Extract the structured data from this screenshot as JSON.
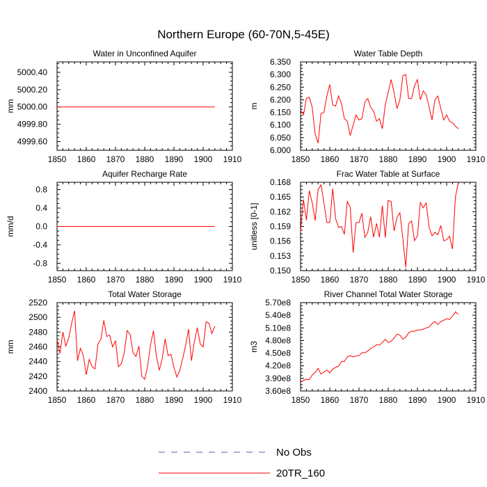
{
  "figure": {
    "title": "Northern Europe (60-70N,5-45E)",
    "colors": {
      "model": "#ff0000",
      "obs": "#5a5aa0"
    }
  },
  "legend": {
    "items": [
      {
        "label": "No Obs",
        "style": "dashed",
        "color": "#5a5aa0"
      },
      {
        "label": "20TR_160",
        "style": "solid",
        "color": "#ff0000"
      }
    ]
  },
  "chart_data": [
    {
      "type": "line",
      "title": "Water in Unconfined Aquifer",
      "xlabel": "",
      "ylabel": "mm",
      "xlim": [
        1850,
        1910
      ],
      "ylim": [
        4999.5,
        5000.52
      ],
      "xticks": [
        1850,
        1860,
        1870,
        1880,
        1890,
        1900,
        1910
      ],
      "yticks": [
        4999.6,
        4999.8,
        5000.0,
        5000.2,
        5000.4
      ],
      "ytick_labels": [
        "4999.60",
        "4999.80",
        "5000.00",
        "5000.20",
        "5000.40"
      ],
      "x": [
        1850,
        1851,
        1852,
        1853,
        1854,
        1855,
        1856,
        1857,
        1858,
        1859,
        1860,
        1861,
        1862,
        1863,
        1864,
        1865,
        1866,
        1867,
        1868,
        1869,
        1870,
        1871,
        1872,
        1873,
        1874,
        1875,
        1876,
        1877,
        1878,
        1879,
        1880,
        1881,
        1882,
        1883,
        1884,
        1885,
        1886,
        1887,
        1888,
        1889,
        1890,
        1891,
        1892,
        1893,
        1894,
        1895,
        1896,
        1897,
        1898,
        1899,
        1900,
        1901,
        1902,
        1903,
        1904
      ],
      "series": [
        {
          "name": "20TR_160",
          "values": [
            5000,
            5000,
            5000,
            5000,
            5000,
            5000,
            5000,
            5000,
            5000,
            5000,
            5000,
            5000,
            5000,
            5000,
            5000,
            5000,
            5000,
            5000,
            5000,
            5000,
            5000,
            5000,
            5000,
            5000,
            5000,
            5000,
            5000,
            5000,
            5000,
            5000,
            5000,
            5000,
            5000,
            5000,
            5000,
            5000,
            5000,
            5000,
            5000,
            5000,
            5000,
            5000,
            5000,
            5000,
            5000,
            5000,
            5000,
            5000,
            5000,
            5000,
            5000,
            5000,
            5000,
            5000,
            5000
          ]
        }
      ]
    },
    {
      "type": "line",
      "title": "Water Table Depth",
      "xlabel": "",
      "ylabel": "m",
      "xlim": [
        1850,
        1910
      ],
      "ylim": [
        6.0,
        6.35
      ],
      "xticks": [
        1850,
        1860,
        1870,
        1880,
        1890,
        1900,
        1910
      ],
      "yticks": [
        6.0,
        6.05,
        6.1,
        6.15,
        6.2,
        6.25,
        6.3,
        6.35
      ],
      "ytick_labels": [
        "6.000",
        "6.050",
        "6.100",
        "6.150",
        "6.200",
        "6.250",
        "6.300",
        "6.350"
      ],
      "x": [
        1850,
        1851,
        1852,
        1853,
        1854,
        1855,
        1856,
        1857,
        1858,
        1859,
        1860,
        1861,
        1862,
        1863,
        1864,
        1865,
        1866,
        1867,
        1868,
        1869,
        1870,
        1871,
        1872,
        1873,
        1874,
        1875,
        1876,
        1877,
        1878,
        1879,
        1880,
        1881,
        1882,
        1883,
        1884,
        1885,
        1886,
        1887,
        1888,
        1889,
        1890,
        1891,
        1892,
        1893,
        1894,
        1895,
        1896,
        1897,
        1898,
        1899,
        1900,
        1901,
        1902,
        1903,
        1904
      ],
      "series": [
        {
          "name": "20TR_160",
          "values": [
            6.16,
            6.14,
            6.205,
            6.21,
            6.17,
            6.065,
            6.028,
            6.145,
            6.15,
            6.215,
            6.26,
            6.18,
            6.175,
            6.215,
            6.185,
            6.125,
            6.115,
            6.058,
            6.1,
            6.14,
            6.12,
            6.125,
            6.19,
            6.205,
            6.17,
            6.155,
            6.115,
            6.125,
            6.085,
            6.18,
            6.23,
            6.28,
            6.23,
            6.165,
            6.2,
            6.295,
            6.3,
            6.205,
            6.205,
            6.255,
            6.28,
            6.2,
            6.235,
            6.22,
            6.17,
            6.12,
            6.2,
            6.215,
            6.165,
            6.12,
            6.14,
            6.115,
            6.11,
            6.095,
            6.085
          ]
        }
      ]
    },
    {
      "type": "line",
      "title": "Aquifer Recharge Rate",
      "xlabel": "",
      "ylabel": "mm/d",
      "xlim": [
        1850,
        1910
      ],
      "ylim": [
        -0.96,
        0.96
      ],
      "xticks": [
        1850,
        1860,
        1870,
        1880,
        1890,
        1900,
        1910
      ],
      "yticks": [
        -0.8,
        -0.4,
        0.0,
        0.4,
        0.8
      ],
      "ytick_labels": [
        "-0.8",
        "-0.4",
        "0.0",
        "0.4",
        "0.8"
      ],
      "x": [
        1850,
        1851,
        1852,
        1853,
        1854,
        1855,
        1856,
        1857,
        1858,
        1859,
        1860,
        1861,
        1862,
        1863,
        1864,
        1865,
        1866,
        1867,
        1868,
        1869,
        1870,
        1871,
        1872,
        1873,
        1874,
        1875,
        1876,
        1877,
        1878,
        1879,
        1880,
        1881,
        1882,
        1883,
        1884,
        1885,
        1886,
        1887,
        1888,
        1889,
        1890,
        1891,
        1892,
        1893,
        1894,
        1895,
        1896,
        1897,
        1898,
        1899,
        1900,
        1901,
        1902,
        1903,
        1904
      ],
      "series": [
        {
          "name": "20TR_160",
          "values": [
            0,
            0,
            0,
            0,
            0,
            0,
            0,
            0,
            0,
            0,
            0,
            0,
            0,
            0,
            0,
            0,
            0,
            0,
            0,
            0,
            0,
            0,
            0,
            0,
            0,
            0,
            0,
            0,
            0,
            0,
            0,
            0,
            0,
            0,
            0,
            0,
            0,
            0,
            0,
            0,
            0,
            0,
            0,
            0,
            0,
            0,
            0,
            0,
            0,
            0,
            0,
            0,
            0,
            0,
            0
          ]
        }
      ]
    },
    {
      "type": "line",
      "title": "Frac Water Table at Surface",
      "xlabel": "",
      "ylabel": "unitless [0-1]",
      "xlim": [
        1850,
        1910
      ],
      "ylim": [
        0.15,
        0.168
      ],
      "xticks": [
        1850,
        1860,
        1870,
        1880,
        1890,
        1900,
        1910
      ],
      "yticks": [
        0.15,
        0.153,
        0.156,
        0.159,
        0.162,
        0.165,
        0.168
      ],
      "ytick_labels": [
        "0.150",
        "0.153",
        "0.156",
        "0.159",
        "0.162",
        "0.165",
        "0.168"
      ],
      "x": [
        1850,
        1851,
        1852,
        1853,
        1854,
        1855,
        1856,
        1857,
        1858,
        1859,
        1860,
        1861,
        1862,
        1863,
        1864,
        1865,
        1866,
        1867,
        1868,
        1869,
        1870,
        1871,
        1872,
        1873,
        1874,
        1875,
        1876,
        1877,
        1878,
        1879,
        1880,
        1881,
        1882,
        1883,
        1884,
        1885,
        1886,
        1887,
        1888,
        1889,
        1890,
        1891,
        1892,
        1893,
        1894,
        1895,
        1896,
        1897,
        1898,
        1899,
        1900,
        1901,
        1902,
        1903,
        1904
      ],
      "series": [
        {
          "name": "20TR_160",
          "values": [
            0.158,
            0.1645,
            0.1603,
            0.1663,
            0.1638,
            0.1602,
            0.1665,
            0.1675,
            0.1638,
            0.1598,
            0.1598,
            0.1667,
            0.1606,
            0.1588,
            0.159,
            0.1574,
            0.1641,
            0.1629,
            0.1537,
            0.1598,
            0.1598,
            0.1617,
            0.1568,
            0.1578,
            0.161,
            0.1568,
            0.1596,
            0.1568,
            0.1633,
            0.1567,
            0.1643,
            0.1641,
            0.1581,
            0.1608,
            0.1618,
            0.1566,
            0.1507,
            0.1596,
            0.1601,
            0.1561,
            0.1571,
            0.1639,
            0.1628,
            0.1638,
            0.1588,
            0.1571,
            0.1578,
            0.1573,
            0.1592,
            0.1561,
            0.1563,
            0.157,
            0.1544,
            0.165,
            0.168
          ]
        }
      ]
    },
    {
      "type": "line",
      "title": "Total Water Storage",
      "xlabel": "",
      "ylabel": "mm",
      "xlim": [
        1850,
        1910
      ],
      "ylim": [
        2400,
        2520
      ],
      "xticks": [
        1850,
        1860,
        1870,
        1880,
        1890,
        1900,
        1910
      ],
      "yticks": [
        2400,
        2420,
        2440,
        2460,
        2480,
        2500,
        2520
      ],
      "ytick_labels": [
        "2400",
        "2420",
        "2440",
        "2460",
        "2480",
        "2500",
        "2520"
      ],
      "x": [
        1850,
        1851,
        1852,
        1853,
        1854,
        1855,
        1856,
        1857,
        1858,
        1859,
        1860,
        1861,
        1862,
        1863,
        1864,
        1865,
        1866,
        1867,
        1868,
        1869,
        1870,
        1871,
        1872,
        1873,
        1874,
        1875,
        1876,
        1877,
        1878,
        1879,
        1880,
        1881,
        1882,
        1883,
        1884,
        1885,
        1886,
        1887,
        1888,
        1889,
        1890,
        1891,
        1892,
        1893,
        1894,
        1895,
        1896,
        1897,
        1898,
        1899,
        1900,
        1901,
        1902,
        1903,
        1904
      ],
      "series": [
        {
          "name": "20TR_160",
          "values": [
            2470,
            2451,
            2480,
            2461,
            2472,
            2492,
            2509,
            2441,
            2458,
            2448,
            2422,
            2443,
            2433,
            2430,
            2464,
            2470,
            2496,
            2474,
            2476,
            2460,
            2468,
            2433,
            2437,
            2452,
            2482,
            2477,
            2452,
            2447,
            2461,
            2420,
            2416,
            2434,
            2463,
            2482,
            2447,
            2428,
            2444,
            2471,
            2448,
            2450,
            2432,
            2419,
            2428,
            2444,
            2462,
            2484,
            2441,
            2467,
            2486,
            2464,
            2460,
            2494,
            2492,
            2478,
            2488
          ]
        }
      ]
    },
    {
      "type": "line",
      "title": "River Channel Total Water Storage",
      "xlabel": "",
      "ylabel": "m3",
      "xlim": [
        1850,
        1910
      ],
      "ylim": [
        360000000,
        570000000
      ],
      "xticks": [
        1850,
        1860,
        1870,
        1880,
        1890,
        1900,
        1910
      ],
      "yticks": [
        360000000,
        390000000,
        420000000,
        450000000,
        480000000,
        510000000,
        540000000,
        570000000
      ],
      "ytick_labels": [
        "3.60e8",
        "3.90e8",
        "4.20e8",
        "4.50e8",
        "4.80e8",
        "5.10e8",
        "5.40e8",
        "5.70e8"
      ],
      "x": [
        1850,
        1851,
        1852,
        1853,
        1854,
        1855,
        1856,
        1857,
        1858,
        1859,
        1860,
        1861,
        1862,
        1863,
        1864,
        1865,
        1866,
        1867,
        1868,
        1869,
        1870,
        1871,
        1872,
        1873,
        1874,
        1875,
        1876,
        1877,
        1878,
        1879,
        1880,
        1881,
        1882,
        1883,
        1884,
        1885,
        1886,
        1887,
        1888,
        1889,
        1890,
        1891,
        1892,
        1893,
        1894,
        1895,
        1896,
        1897,
        1898,
        1899,
        1900,
        1901,
        1902,
        1903,
        1904
      ],
      "series": [
        {
          "name": "20TR_160",
          "values": [
            381000000,
            385000000,
            388000000,
            387000000,
            398000000,
            404000000,
            414000000,
            400000000,
            405000000,
            410000000,
            403000000,
            412000000,
            416000000,
            419000000,
            430000000,
            430000000,
            441000000,
            444000000,
            441000000,
            443000000,
            444000000,
            451000000,
            451000000,
            455000000,
            461000000,
            465000000,
            470000000,
            469000000,
            475000000,
            483000000,
            475000000,
            478000000,
            486000000,
            495000000,
            493000000,
            483000000,
            488000000,
            498000000,
            502000000,
            502000000,
            505000000,
            505000000,
            507000000,
            510000000,
            512000000,
            520000000,
            525000000,
            518000000,
            525000000,
            528000000,
            532000000,
            530000000,
            538000000,
            548000000,
            542000000
          ]
        }
      ]
    }
  ]
}
